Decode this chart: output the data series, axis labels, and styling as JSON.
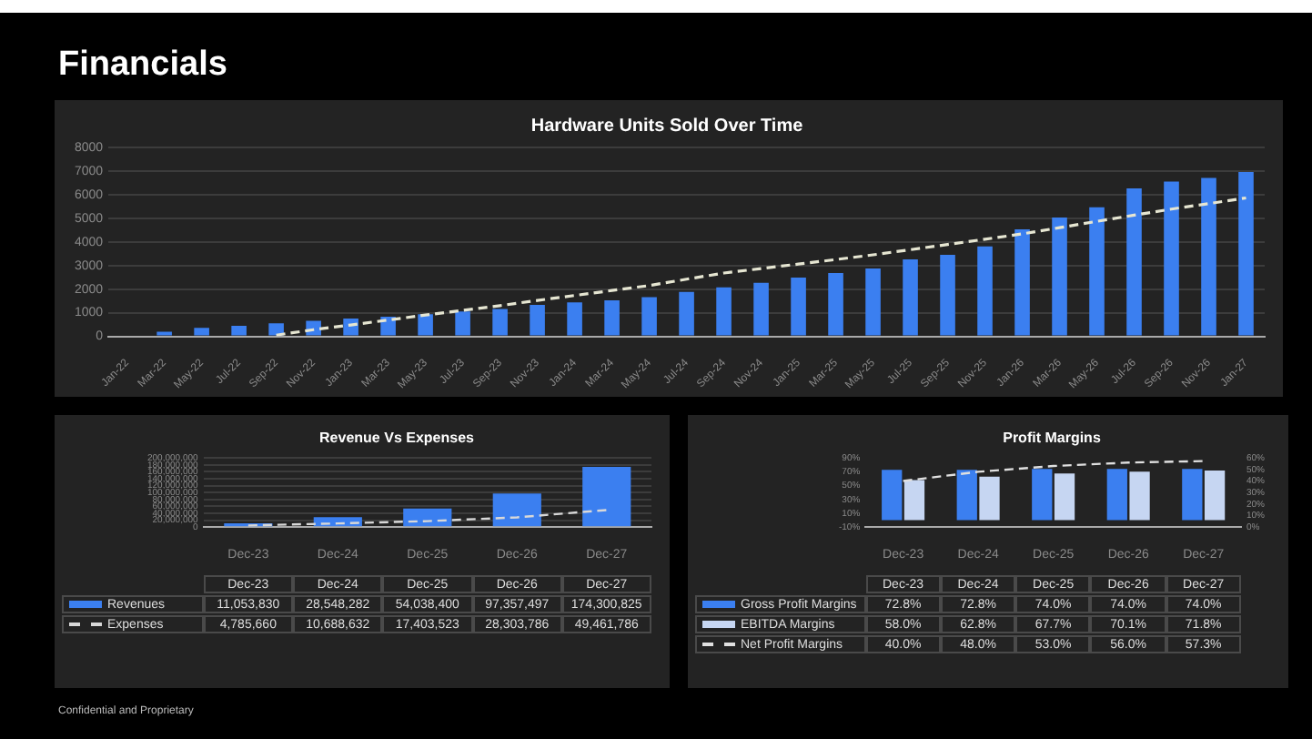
{
  "chart_data": [
    {
      "type": "bar",
      "title": "Hardware Units Sold Over Time",
      "annotations": [
        "Financials",
        "Confidential and Proprietary"
      ],
      "categories": [
        "Jan-22",
        "Mar-22",
        "May-22",
        "Jul-22",
        "Sep-22",
        "Nov-22",
        "Jan-23",
        "Mar-23",
        "May-23",
        "Jul-23",
        "Sep-23",
        "Nov-23",
        "Jan-24",
        "Mar-24",
        "May-24",
        "Jul-24",
        "Sep-24",
        "Nov-24",
        "Jan-25",
        "Mar-25",
        "May-25",
        "Jul-25",
        "Sep-25",
        "Nov-25",
        "Jan-26",
        "Mar-26",
        "May-26",
        "Jul-26",
        "Sep-26",
        "Nov-26",
        "Jan-27"
      ],
      "series": [
        {
          "color": "#3b7ff0",
          "values": [
            0,
            190,
            360,
            440,
            550,
            660,
            750,
            830,
            940,
            1050,
            1160,
            1330,
            1440,
            1520,
            1660,
            1880,
            2070,
            2270,
            2490,
            2680,
            2870,
            3260,
            3450,
            3810,
            4530,
            5030,
            5470,
            6270,
            6550,
            6710,
            6960
          ]
        },
        {
          "type": "line",
          "color": "#e6e6d2",
          "line_style": "dashed",
          "marker": "none",
          "values": [
            null,
            null,
            null,
            null,
            50,
            280,
            480,
            690,
            900,
            1100,
            1300,
            1520,
            1730,
            1940,
            2150,
            2420,
            2680,
            2870,
            3060,
            3250,
            3450,
            3670,
            3890,
            4110,
            4340,
            4600,
            4870,
            5130,
            5390,
            5620,
            5860
          ]
        }
      ],
      "ylim": [
        0,
        8000
      ],
      "yticks": [
        0,
        1000,
        2000,
        3000,
        4000,
        5000,
        6000,
        7000,
        8000
      ],
      "grid": "y"
    },
    {
      "type": "bar",
      "title": "Revenue Vs Expenses",
      "categories": [
        "Dec-23",
        "Dec-24",
        "Dec-25",
        "Dec-26",
        "Dec-27"
      ],
      "series": [
        {
          "name": "Revenues",
          "color": "#3b7ff0",
          "values": [
            11053830,
            28548282,
            54038400,
            97357497,
            174300825
          ],
          "value_labels": [
            "11,053,830",
            "28,548,282",
            "54,038,400",
            "97,357,497",
            "174,300,825"
          ]
        },
        {
          "name": "Expenses",
          "type": "line",
          "color": "#d8d8d8",
          "line_style": "dashed",
          "marker": "none",
          "values": [
            4785660,
            10688632,
            17403523,
            28303786,
            49461786
          ],
          "value_labels": [
            "4,785,660",
            "10,688,632",
            "17,403,523",
            "28,303,786",
            "49,461,786"
          ]
        }
      ],
      "ylim": [
        0,
        200000000
      ],
      "yticks": [
        {
          "value": 0,
          "label": "0"
        },
        {
          "value": 20000000,
          "label": "20,000,000"
        },
        {
          "value": 40000000,
          "label": "40,000,000"
        },
        {
          "value": 60000000,
          "label": "60,000,000"
        },
        {
          "value": 80000000,
          "label": "80,000,000"
        },
        {
          "value": 100000000,
          "label": "100,000,000"
        },
        {
          "value": 120000000,
          "label": "120,000,000"
        },
        {
          "value": 140000000,
          "label": "140,000,000"
        },
        {
          "value": 160000000,
          "label": "160,000,000"
        },
        {
          "value": 180000000,
          "label": "180,000,000"
        },
        {
          "value": 200000000,
          "label": "200,000,000"
        }
      ],
      "grid": "y",
      "legend": "bottom"
    },
    {
      "type": "bar",
      "title": "Profit Margins",
      "categories": [
        "Dec-23",
        "Dec-24",
        "Dec-25",
        "Dec-26",
        "Dec-27"
      ],
      "series": [
        {
          "name": "Gross Profit Margins",
          "color": "#3b7ff0",
          "values": [
            72.8,
            72.8,
            74.0,
            74.0,
            74.0
          ],
          "value_labels": [
            "72.8%",
            "72.8%",
            "74.0%",
            "74.0%",
            "74.0%"
          ]
        },
        {
          "name": "EBITDA Margins",
          "color": "#c6d6f2",
          "values": [
            58.0,
            62.8,
            67.7,
            70.1,
            71.8
          ],
          "value_labels": [
            "58.0%",
            "62.8%",
            "67.7%",
            "70.1%",
            "71.8%"
          ]
        },
        {
          "name": "Net Profit Margins",
          "type": "line",
          "axis": "y2",
          "color": "#e0e0e0",
          "line_style": "dashed",
          "marker": "none",
          "values": [
            40.0,
            48.0,
            53.0,
            56.0,
            57.3
          ],
          "value_labels": [
            "40.0%",
            "48.0%",
            "53.0%",
            "56.0%",
            "57.3%"
          ]
        }
      ],
      "ylim": [
        -10,
        90
      ],
      "yticks": [
        {
          "value": -10,
          "label": "-10%"
        },
        {
          "value": 10,
          "label": "10%"
        },
        {
          "value": 30,
          "label": "30%"
        },
        {
          "value": 50,
          "label": "50%"
        },
        {
          "value": 70,
          "label": "70%"
        },
        {
          "value": 90,
          "label": "90%"
        }
      ],
      "y2lim": [
        0,
        60
      ],
      "y2ticks": [
        {
          "value": 0,
          "label": "0%"
        },
        {
          "value": 10,
          "label": "10%"
        },
        {
          "value": 20,
          "label": "20%"
        },
        {
          "value": 30,
          "label": "30%"
        },
        {
          "value": 40,
          "label": "40%"
        },
        {
          "value": 50,
          "label": "50%"
        },
        {
          "value": 60,
          "label": "60%"
        }
      ],
      "legend": "bottom"
    }
  ]
}
